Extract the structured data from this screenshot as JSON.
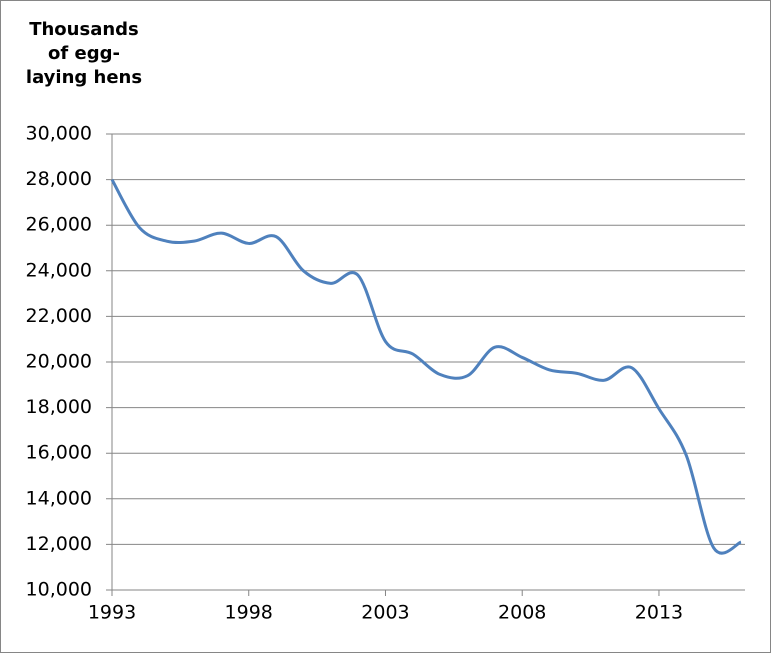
{
  "chart_data": {
    "type": "line",
    "y_label_lines": [
      "Thousands",
      "of egg-",
      "laying hens"
    ],
    "x": [
      1993,
      1994,
      1995,
      1996,
      1997,
      1998,
      1999,
      2000,
      2001,
      2002,
      2003,
      2004,
      2005,
      2006,
      2007,
      2008,
      2009,
      2010,
      2011,
      2012,
      2013,
      2014,
      2015,
      2016
    ],
    "series": [
      {
        "color": "#4f81bd",
        "values": [
          28000,
          25900,
          25300,
          25300,
          25650,
          25200,
          25500,
          24000,
          23450,
          23800,
          20900,
          20350,
          19450,
          19400,
          20650,
          20200,
          19650,
          19500,
          19200,
          19750,
          17950,
          15900,
          11850,
          12100
        ]
      }
    ],
    "xlim": [
      1993,
      2016
    ],
    "xticks": [
      1993,
      1998,
      2003,
      2008,
      2013
    ],
    "ylim": [
      10000,
      30000
    ],
    "yticks": [
      {
        "value": 10000,
        "label": "10,000"
      },
      {
        "value": 12000,
        "label": "12,000"
      },
      {
        "value": 14000,
        "label": "14,000"
      },
      {
        "value": 16000,
        "label": "16,000"
      },
      {
        "value": 18000,
        "label": "18,000"
      },
      {
        "value": 20000,
        "label": "20,000"
      },
      {
        "value": 22000,
        "label": "22,000"
      },
      {
        "value": 24000,
        "label": "24,000"
      },
      {
        "value": 26000,
        "label": "26,000"
      },
      {
        "value": 28000,
        "label": "28,000"
      },
      {
        "value": 30000,
        "label": "30,000"
      }
    ],
    "grid": true,
    "smooth": true
  }
}
